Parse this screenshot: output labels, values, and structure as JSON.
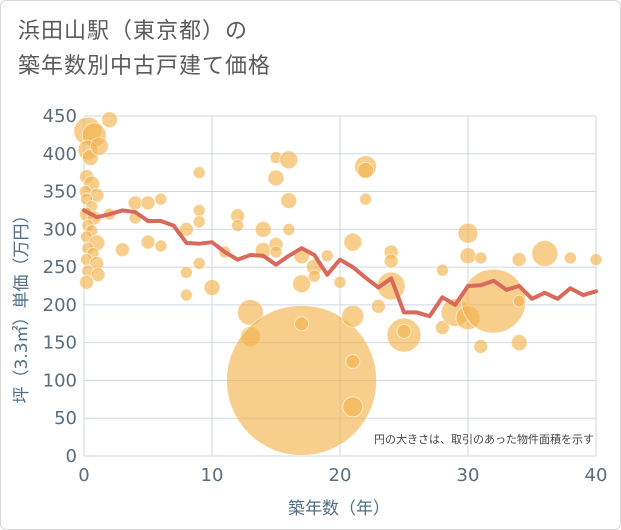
{
  "title_line1": "浜田山駅（東京都）の",
  "title_line2": "築年数別中古戸建て価格",
  "chart_data": {
    "type": "scatter",
    "xlabel": "築年数（年）",
    "ylabel": "坪（3.3㎡）単価（万円）",
    "xlim": [
      0,
      40
    ],
    "ylim": [
      0,
      450
    ],
    "xticks": [
      "0",
      "10",
      "20",
      "30",
      "40"
    ],
    "yticks": [
      "0",
      "50",
      "100",
      "150",
      "200",
      "250",
      "300",
      "350",
      "400",
      "450"
    ],
    "grid": true,
    "annotation": "円の大きさは、取引のあった物件面積を示す",
    "colors": {
      "bubble": "#f2b44e",
      "line": "#d9695a",
      "grid": "#cfd8e3",
      "axis_text": "#5a6d7d"
    },
    "bubbles": [
      {
        "x": 0.3,
        "y": 430,
        "s": 14
      },
      {
        "x": 0.8,
        "y": 425,
        "s": 12
      },
      {
        "x": 0.3,
        "y": 405,
        "s": 10
      },
      {
        "x": 0.5,
        "y": 395,
        "s": 8
      },
      {
        "x": 0.2,
        "y": 370,
        "s": 7
      },
      {
        "x": 0.6,
        "y": 360,
        "s": 8
      },
      {
        "x": 0.1,
        "y": 350,
        "s": 6
      },
      {
        "x": 1.0,
        "y": 345,
        "s": 7
      },
      {
        "x": 0.2,
        "y": 340,
        "s": 6
      },
      {
        "x": 0.6,
        "y": 330,
        "s": 6
      },
      {
        "x": 0.2,
        "y": 320,
        "s": 7
      },
      {
        "x": 0.8,
        "y": 315,
        "s": 7
      },
      {
        "x": 0.3,
        "y": 305,
        "s": 6
      },
      {
        "x": 0.6,
        "y": 298,
        "s": 6
      },
      {
        "x": 0.2,
        "y": 290,
        "s": 6
      },
      {
        "x": 1.0,
        "y": 282,
        "s": 8
      },
      {
        "x": 0.3,
        "y": 275,
        "s": 6
      },
      {
        "x": 0.7,
        "y": 268,
        "s": 6
      },
      {
        "x": 0.2,
        "y": 260,
        "s": 6
      },
      {
        "x": 1.0,
        "y": 255,
        "s": 7
      },
      {
        "x": 0.3,
        "y": 245,
        "s": 6
      },
      {
        "x": 1.1,
        "y": 240,
        "s": 7
      },
      {
        "x": 0.2,
        "y": 230,
        "s": 7
      },
      {
        "x": 2.0,
        "y": 445,
        "s": 8
      },
      {
        "x": 1.2,
        "y": 410,
        "s": 9
      },
      {
        "x": 2.0,
        "y": 320,
        "s": 6
      },
      {
        "x": 3.0,
        "y": 273,
        "s": 7
      },
      {
        "x": 4.0,
        "y": 335,
        "s": 7
      },
      {
        "x": 4.0,
        "y": 315,
        "s": 6
      },
      {
        "x": 5.0,
        "y": 335,
        "s": 7
      },
      {
        "x": 5.0,
        "y": 283,
        "s": 7
      },
      {
        "x": 6.0,
        "y": 340,
        "s": 6
      },
      {
        "x": 6.0,
        "y": 278,
        "s": 6
      },
      {
        "x": 8.0,
        "y": 300,
        "s": 7
      },
      {
        "x": 8.0,
        "y": 243,
        "s": 6
      },
      {
        "x": 8.0,
        "y": 213,
        "s": 6
      },
      {
        "x": 9.0,
        "y": 375,
        "s": 6
      },
      {
        "x": 9.0,
        "y": 325,
        "s": 6
      },
      {
        "x": 9.0,
        "y": 310,
        "s": 6
      },
      {
        "x": 9.0,
        "y": 255,
        "s": 6
      },
      {
        "x": 10.0,
        "y": 223,
        "s": 8
      },
      {
        "x": 11.0,
        "y": 270,
        "s": 6
      },
      {
        "x": 12.0,
        "y": 318,
        "s": 7
      },
      {
        "x": 12.0,
        "y": 305,
        "s": 6
      },
      {
        "x": 13.0,
        "y": 190,
        "s": 13
      },
      {
        "x": 13.0,
        "y": 158,
        "s": 10
      },
      {
        "x": 14.0,
        "y": 300,
        "s": 8
      },
      {
        "x": 14.0,
        "y": 272,
        "s": 8
      },
      {
        "x": 15.0,
        "y": 395,
        "s": 6
      },
      {
        "x": 15.0,
        "y": 368,
        "s": 8
      },
      {
        "x": 15.0,
        "y": 280,
        "s": 7
      },
      {
        "x": 15.0,
        "y": 270,
        "s": 6
      },
      {
        "x": 16.0,
        "y": 392,
        "s": 9
      },
      {
        "x": 16.0,
        "y": 338,
        "s": 8
      },
      {
        "x": 16.0,
        "y": 300,
        "s": 6
      },
      {
        "x": 17.0,
        "y": 100,
        "s": 75
      },
      {
        "x": 17.0,
        "y": 175,
        "s": 7
      },
      {
        "x": 17.0,
        "y": 265,
        "s": 8
      },
      {
        "x": 17.0,
        "y": 228,
        "s": 9
      },
      {
        "x": 18.0,
        "y": 250,
        "s": 8
      },
      {
        "x": 18.0,
        "y": 238,
        "s": 6
      },
      {
        "x": 19.0,
        "y": 265,
        "s": 6
      },
      {
        "x": 20.0,
        "y": 230,
        "s": 6
      },
      {
        "x": 21.0,
        "y": 283,
        "s": 9
      },
      {
        "x": 21.0,
        "y": 185,
        "s": 11
      },
      {
        "x": 21.0,
        "y": 125,
        "s": 7
      },
      {
        "x": 21.0,
        "y": 65,
        "s": 10
      },
      {
        "x": 22.0,
        "y": 383,
        "s": 11
      },
      {
        "x": 22.0,
        "y": 378,
        "s": 8
      },
      {
        "x": 22.0,
        "y": 340,
        "s": 6
      },
      {
        "x": 23.0,
        "y": 198,
        "s": 7
      },
      {
        "x": 24.0,
        "y": 270,
        "s": 7
      },
      {
        "x": 24.0,
        "y": 258,
        "s": 7
      },
      {
        "x": 24.0,
        "y": 225,
        "s": 14
      },
      {
        "x": 25.0,
        "y": 160,
        "s": 17
      },
      {
        "x": 25.0,
        "y": 165,
        "s": 7
      },
      {
        "x": 28.0,
        "y": 246,
        "s": 6
      },
      {
        "x": 28.0,
        "y": 170,
        "s": 7
      },
      {
        "x": 29.0,
        "y": 190,
        "s": 14
      },
      {
        "x": 30.0,
        "y": 295,
        "s": 10
      },
      {
        "x": 30.0,
        "y": 265,
        "s": 8
      },
      {
        "x": 30.0,
        "y": 183,
        "s": 12
      },
      {
        "x": 31.0,
        "y": 262,
        "s": 6
      },
      {
        "x": 31.0,
        "y": 145,
        "s": 7
      },
      {
        "x": 32.0,
        "y": 205,
        "s": 32
      },
      {
        "x": 34.0,
        "y": 260,
        "s": 7
      },
      {
        "x": 34.0,
        "y": 205,
        "s": 6
      },
      {
        "x": 34.0,
        "y": 150,
        "s": 8
      },
      {
        "x": 36.0,
        "y": 268,
        "s": 13
      },
      {
        "x": 38.0,
        "y": 262,
        "s": 6
      },
      {
        "x": 40.0,
        "y": 260,
        "s": 6
      }
    ],
    "line": {
      "x": [
        0,
        1,
        2,
        3,
        4,
        5,
        6,
        7,
        8,
        9,
        10,
        11,
        12,
        13,
        14,
        15,
        16,
        17,
        18,
        19,
        20,
        21,
        22,
        23,
        24,
        25,
        26,
        27,
        28,
        29,
        30,
        31,
        32,
        33,
        34,
        35,
        36,
        37,
        38,
        39,
        40
      ],
      "y": [
        325,
        316,
        320,
        325,
        323,
        311,
        311,
        305,
        282,
        281,
        283,
        270,
        260,
        266,
        265,
        253,
        265,
        275,
        266,
        240,
        260,
        250,
        236,
        223,
        235,
        190,
        190,
        185,
        210,
        200,
        225,
        226,
        232,
        220,
        225,
        208,
        216,
        208,
        222,
        213,
        218
      ]
    }
  }
}
